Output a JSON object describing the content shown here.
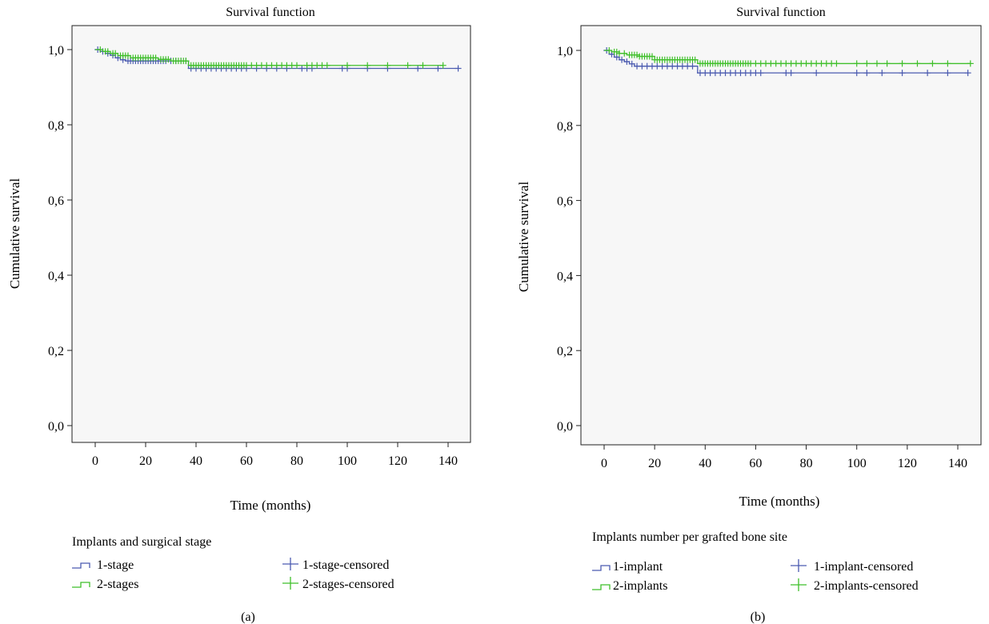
{
  "colors": {
    "series1": "#4b5bb0",
    "series2": "#3fbf2a",
    "plot_bg": "#f7f7f7",
    "frame": "#222222"
  },
  "chart_data": [
    {
      "type": "line",
      "title": "Survival function",
      "xlabel": "Time (months)",
      "ylabel": "Cumulative survival",
      "xlim": [
        -5,
        150
      ],
      "ylim": [
        -0.05,
        1.05
      ],
      "x_ticks": [
        0,
        20,
        40,
        60,
        80,
        100,
        120,
        140
      ],
      "x_tick_labels": [
        "0",
        "20",
        "40",
        "60",
        "80",
        "100",
        "120",
        "140"
      ],
      "y_ticks": [
        0.0,
        0.2,
        0.4,
        0.6,
        0.8,
        1.0
      ],
      "y_tick_labels": [
        "0,0",
        "0,2",
        "0,4",
        "0,6",
        "0,8",
        "1,0"
      ],
      "legend_title": "Implants and surgical stage",
      "legend_labels": [
        "1-stage",
        "1-stage-censored",
        "2-stages",
        "2-stages-censored"
      ],
      "panel_label": "(a)",
      "series": [
        {
          "name": "1-stage",
          "steps": [
            [
              0,
              1.0
            ],
            [
              2,
              0.995
            ],
            [
              4,
              0.99
            ],
            [
              6,
              0.985
            ],
            [
              8,
              0.978
            ],
            [
              10,
              0.973
            ],
            [
              12,
              0.97
            ],
            [
              37,
              0.95
            ],
            [
              144,
              0.95
            ]
          ],
          "censored": [
            1,
            3,
            5,
            7,
            9,
            11,
            13,
            14,
            15,
            16,
            17,
            18,
            19,
            20,
            21,
            22,
            23,
            24,
            25,
            26,
            27,
            28,
            30,
            32,
            34,
            36,
            38,
            40,
            42,
            44,
            46,
            48,
            50,
            52,
            54,
            56,
            58,
            60,
            64,
            68,
            72,
            76,
            82,
            84,
            86,
            98,
            100,
            108,
            116,
            128,
            136,
            144
          ]
        },
        {
          "name": "2-stages",
          "steps": [
            [
              0,
              1.0
            ],
            [
              3,
              0.995
            ],
            [
              6,
              0.99
            ],
            [
              9,
              0.984
            ],
            [
              14,
              0.978
            ],
            [
              25,
              0.974
            ],
            [
              30,
              0.97
            ],
            [
              37,
              0.958
            ],
            [
              138,
              0.958
            ]
          ],
          "censored": [
            2,
            4,
            5,
            7,
            8,
            10,
            11,
            12,
            13,
            15,
            16,
            17,
            18,
            19,
            20,
            21,
            22,
            23,
            24,
            26,
            27,
            28,
            29,
            31,
            32,
            33,
            34,
            35,
            36,
            38,
            39,
            40,
            41,
            42,
            43,
            44,
            45,
            46,
            47,
            48,
            49,
            50,
            51,
            52,
            53,
            54,
            55,
            56,
            57,
            58,
            59,
            60,
            62,
            64,
            66,
            68,
            70,
            72,
            74,
            76,
            78,
            80,
            84,
            86,
            88,
            90,
            92,
            100,
            108,
            116,
            124,
            130,
            138
          ]
        }
      ]
    },
    {
      "type": "line",
      "title": "Survival function",
      "xlabel": "Time (months)",
      "ylabel": "Cumulative survival",
      "xlim": [
        -5,
        150
      ],
      "ylim": [
        -0.05,
        1.05
      ],
      "x_ticks": [
        0,
        20,
        40,
        60,
        80,
        100,
        120,
        140
      ],
      "x_tick_labels": [
        "0",
        "20",
        "40",
        "60",
        "80",
        "100",
        "120",
        "140"
      ],
      "y_ticks": [
        0.0,
        0.2,
        0.4,
        0.6,
        0.8,
        1.0
      ],
      "y_tick_labels": [
        "0,0",
        "0,2",
        "0,4",
        "0,6",
        "0,8",
        "1,0"
      ],
      "legend_title": "Implants number per grafted bone site",
      "legend_labels": [
        "1-implant",
        "1-implant-censored",
        "2-implants",
        "2-implants-censored"
      ],
      "panel_label": "(b)",
      "series": [
        {
          "name": "1-implant",
          "steps": [
            [
              0,
              1.0
            ],
            [
              2,
              0.99
            ],
            [
              4,
              0.982
            ],
            [
              6,
              0.975
            ],
            [
              8,
              0.97
            ],
            [
              10,
              0.964
            ],
            [
              12,
              0.958
            ],
            [
              37,
              0.94
            ],
            [
              144,
              0.94
            ]
          ],
          "censored": [
            1,
            3,
            5,
            7,
            9,
            11,
            13,
            15,
            17,
            19,
            21,
            23,
            25,
            27,
            29,
            31,
            33,
            35,
            38,
            40,
            42,
            44,
            46,
            48,
            50,
            52,
            54,
            56,
            58,
            60,
            62,
            72,
            74,
            84,
            100,
            104,
            110,
            118,
            128,
            136,
            144
          ]
        },
        {
          "name": "2-implants",
          "steps": [
            [
              0,
              1.0
            ],
            [
              3,
              0.996
            ],
            [
              6,
              0.992
            ],
            [
              9,
              0.988
            ],
            [
              14,
              0.984
            ],
            [
              20,
              0.975
            ],
            [
              37,
              0.965
            ],
            [
              145,
              0.965
            ]
          ],
          "censored": [
            2,
            4,
            5,
            6,
            8,
            10,
            11,
            12,
            13,
            14,
            15,
            16,
            17,
            18,
            19,
            20,
            21,
            22,
            23,
            24,
            25,
            26,
            27,
            28,
            29,
            30,
            31,
            32,
            33,
            34,
            35,
            36,
            38,
            39,
            40,
            41,
            42,
            43,
            44,
            45,
            46,
            47,
            48,
            49,
            50,
            51,
            52,
            53,
            54,
            55,
            56,
            57,
            58,
            60,
            62,
            64,
            66,
            68,
            70,
            72,
            74,
            76,
            78,
            80,
            82,
            84,
            86,
            88,
            90,
            92,
            100,
            104,
            108,
            112,
            118,
            124,
            130,
            136,
            145
          ]
        }
      ]
    }
  ]
}
